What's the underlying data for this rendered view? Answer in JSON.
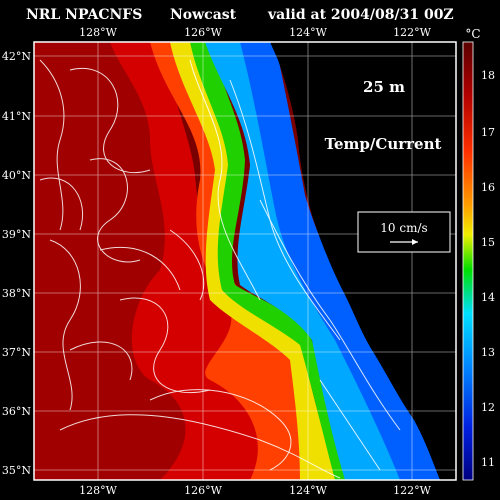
{
  "header": {
    "title": "NRL NPACNFS",
    "mode": "Nowcast",
    "valid": "valid at 2004/08/31 00Z"
  },
  "overlay": {
    "depth": "25 m",
    "field": "Temp/Current",
    "scale_label": "10 cm/s"
  },
  "axes": {
    "lon_labels": [
      "128°W",
      "126°W",
      "124°W",
      "122°W"
    ],
    "lat_labels": [
      "42°N",
      "41°N",
      "40°N",
      "39°N",
      "38°N",
      "37°N",
      "36°N",
      "35°N"
    ]
  },
  "colorbar": {
    "unit": "°C",
    "ticks": [
      "18",
      "17",
      "16",
      "15",
      "14",
      "13",
      "12",
      "11"
    ],
    "colors": [
      "#5a0000",
      "#8b0000",
      "#b00000",
      "#e00000",
      "#ff3000",
      "#ff6a00",
      "#ff9c00",
      "#ffc800",
      "#f0f000",
      "#a0f000",
      "#00e000",
      "#00e0a0",
      "#00e0ff",
      "#00b0ff",
      "#0080ff",
      "#0050ff",
      "#0020e0",
      "#0000b0",
      "#000080"
    ]
  },
  "colors": {
    "land": "#000000",
    "frame": "#ffffff"
  }
}
